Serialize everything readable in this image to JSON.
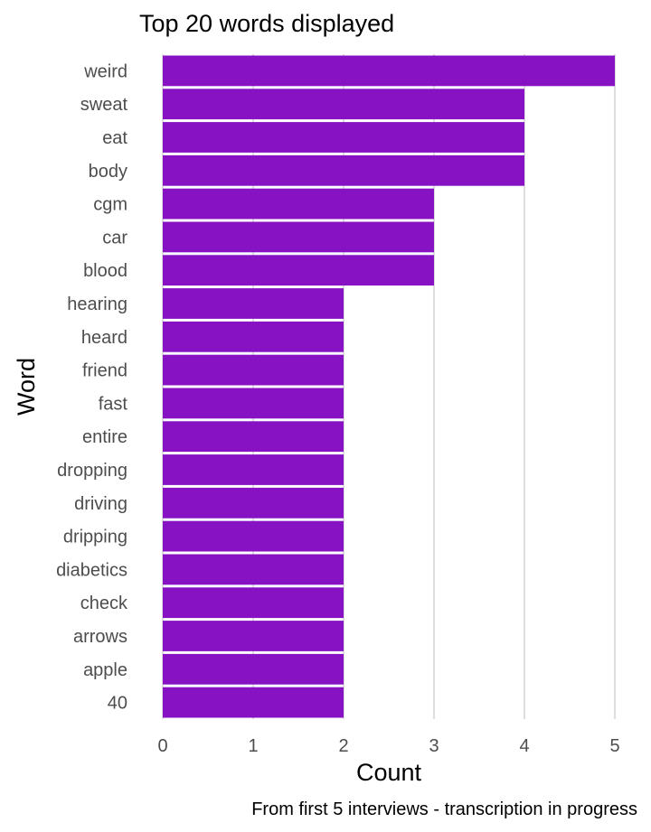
{
  "chart_data": {
    "type": "bar",
    "orientation": "horizontal",
    "title": "Top 20 words displayed",
    "xlabel": "Count",
    "ylabel": "Word",
    "caption": "From first 5 interviews - transcription in progress",
    "categories": [
      "weird",
      "sweat",
      "eat",
      "body",
      "cgm",
      "car",
      "blood",
      "hearing",
      "heard",
      "friend",
      "fast",
      "entire",
      "dropping",
      "driving",
      "dripping",
      "diabetics",
      "check",
      "arrows",
      "apple",
      "40"
    ],
    "values": [
      5,
      4,
      4,
      4,
      3,
      3,
      3,
      2,
      2,
      2,
      2,
      2,
      2,
      2,
      2,
      2,
      2,
      2,
      2,
      2
    ],
    "xlim": [
      0,
      5
    ],
    "xticks": [
      "0",
      "1",
      "2",
      "3",
      "4",
      "5"
    ],
    "grid": "vertical major gridlines",
    "legend": "none",
    "bar_color": "#8612C4",
    "grid_color": "#bdbdbd"
  }
}
